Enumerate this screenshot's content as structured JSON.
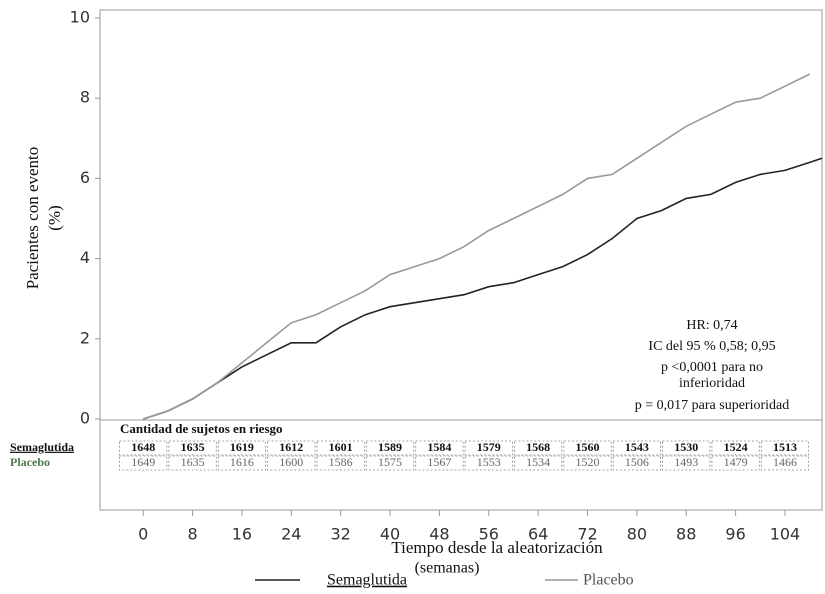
{
  "chart_data": {
    "type": "line",
    "y_label_lines": [
      "Pacientes con evento",
      "(%)"
    ],
    "x_label": "Tiempo desde la aleatorización",
    "x_label_unit": "(semanas)",
    "xlim": [
      -7,
      110
    ],
    "xticks": [
      0,
      8,
      16,
      24,
      32,
      40,
      48,
      56,
      64,
      72,
      80,
      88,
      96,
      104
    ],
    "ylim": [
      0,
      10
    ],
    "yticks": [
      0,
      2,
      4,
      6,
      8,
      10
    ],
    "series": [
      {
        "name": "Semaglutida",
        "color": "#222222",
        "x": [
          0,
          4,
          8,
          12,
          16,
          20,
          24,
          28,
          32,
          36,
          40,
          44,
          48,
          52,
          56,
          60,
          64,
          68,
          72,
          76,
          80,
          84,
          88,
          92,
          96,
          100,
          104,
          108,
          110
        ],
        "values": [
          0,
          0.2,
          0.5,
          0.9,
          1.3,
          1.6,
          1.9,
          1.9,
          2.3,
          2.6,
          2.8,
          2.9,
          3.0,
          3.1,
          3.3,
          3.4,
          3.6,
          3.8,
          4.1,
          4.5,
          5.0,
          5.2,
          5.5,
          5.6,
          5.9,
          6.1,
          6.2,
          6.4,
          6.5
        ]
      },
      {
        "name": "Placebo",
        "color": "#999999",
        "x": [
          0,
          4,
          8,
          12,
          16,
          20,
          24,
          28,
          32,
          36,
          40,
          44,
          48,
          52,
          56,
          60,
          64,
          68,
          72,
          76,
          80,
          84,
          88,
          92,
          96,
          100,
          104,
          108
        ],
        "values": [
          0,
          0.2,
          0.5,
          0.9,
          1.4,
          1.9,
          2.4,
          2.6,
          2.9,
          3.2,
          3.6,
          3.8,
          4.0,
          4.3,
          4.7,
          5.0,
          5.3,
          5.6,
          6.0,
          6.1,
          6.5,
          6.9,
          7.3,
          7.6,
          7.9,
          8.0,
          8.3,
          8.6
        ]
      }
    ],
    "annotation_lines": [
      "HR: 0,74",
      "IC del 95 % 0,58; 0,95",
      "p <0,0001 para no",
      "inferioridad",
      "p = 0,017 para superioridad"
    ],
    "risk_table": {
      "title": "Cantidad de sujetos en riesgo",
      "rows": [
        {
          "name": "Semaglutida",
          "values": [
            "1648",
            "1635",
            "1619",
            "1612",
            "1601",
            "1589",
            "1584",
            "1579",
            "1568",
            "1560",
            "1543",
            "1530",
            "1524",
            "1513"
          ]
        },
        {
          "name": "Placebo",
          "values": [
            "1649",
            "1635",
            "1616",
            "1600",
            "1586",
            "1575",
            "1567",
            "1553",
            "1534",
            "1520",
            "1506",
            "1493",
            "1479",
            "1466"
          ]
        }
      ]
    }
  }
}
